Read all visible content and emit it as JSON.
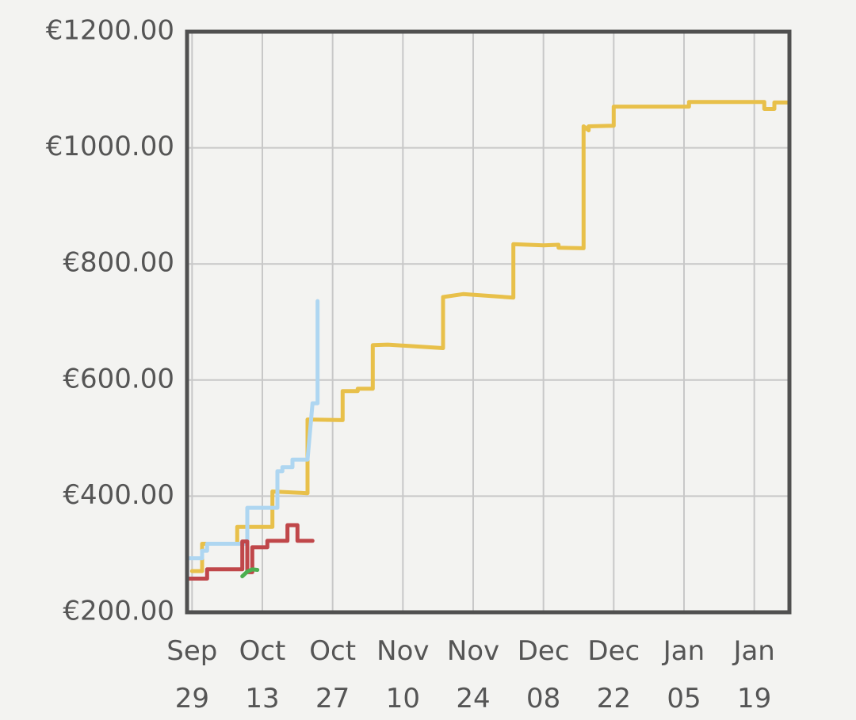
{
  "chart_data": {
    "type": "line",
    "xlim": [
      "Sep 28",
      "Jan 26"
    ],
    "xticks": [
      "Sep 29",
      "Oct 13",
      "Oct 27",
      "Nov 10",
      "Nov 24",
      "Dec 08",
      "Dec 22",
      "Jan 05",
      "Jan 19"
    ],
    "ylim": [
      200,
      1200
    ],
    "yticks": [
      {
        "value": 200,
        "label": "€200.00"
      },
      {
        "value": 400,
        "label": "€400.00"
      },
      {
        "value": 600,
        "label": "€600.00"
      },
      {
        "value": 800,
        "label": "€800.00"
      },
      {
        "value": 1000,
        "label": "€1000.00"
      },
      {
        "value": 1200,
        "label": "€1200.00"
      }
    ],
    "grid": true,
    "series": [
      {
        "color": "#e8c04a",
        "x": [
          "Sep 29",
          "Oct 01",
          "Oct 01",
          "Oct 08",
          "Oct 08",
          "Oct 15",
          "Oct 15",
          "Oct 22",
          "Oct 22",
          "Oct 29",
          "Oct 29",
          "Nov 01",
          "Nov 01",
          "Nov 04",
          "Nov 04",
          "Nov 07",
          "Nov 18",
          "Nov 18",
          "Nov 22",
          "Dec 02",
          "Dec 02",
          "Dec 08",
          "Dec 11",
          "Dec 11",
          "Dec 16",
          "Dec 16",
          "Dec 17",
          "Dec 17",
          "Dec 22",
          "Dec 22",
          "Jan 06",
          "Jan 06",
          "Jan 21",
          "Jan 21",
          "Jan 23",
          "Jan 23",
          "Jan 26"
        ],
        "values": [
          271,
          271,
          318,
          318,
          347,
          347,
          408,
          405,
          532,
          531,
          581,
          581,
          585,
          585,
          660,
          661,
          655,
          743,
          748,
          742,
          834,
          832,
          833,
          828,
          827,
          1037,
          1030,
          1037,
          1038,
          1071,
          1071,
          1079,
          1079,
          1067,
          1067,
          1078,
          1078
        ]
      },
      {
        "color": "#aed6f1",
        "x": [
          "Sep 28",
          "Oct 01",
          "Oct 01",
          "Oct 02",
          "Oct 02",
          "Oct 10",
          "Oct 10",
          "Oct 16",
          "Oct 16",
          "Oct 17",
          "Oct 17",
          "Oct 19",
          "Oct 19",
          "Oct 22",
          "Oct 23",
          "Oct 24",
          "Oct 24"
        ],
        "values": [
          293,
          293,
          306,
          306,
          318,
          318,
          380,
          380,
          443,
          443,
          450,
          450,
          463,
          463,
          560,
          560,
          736
        ]
      },
      {
        "color": "#c0474a",
        "x": [
          "Sep 28",
          "Oct 02",
          "Oct 02",
          "Oct 09",
          "Oct 09",
          "Oct 10",
          "Oct 10",
          "Oct 11",
          "Oct 11",
          "Oct 14",
          "Oct 14",
          "Oct 18",
          "Oct 18",
          "Oct 20",
          "Oct 20",
          "Oct 23"
        ],
        "values": [
          258,
          258,
          274,
          274,
          322,
          322,
          269,
          269,
          312,
          312,
          323,
          323,
          350,
          350,
          323,
          323
        ]
      },
      {
        "color": "#4caf50",
        "x": [
          "Oct 09",
          "Oct 10",
          "Oct 11",
          "Oct 12"
        ],
        "values": [
          262,
          270,
          274,
          273
        ]
      }
    ]
  }
}
